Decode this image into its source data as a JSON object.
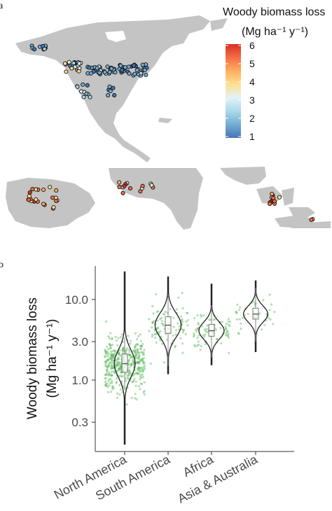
{
  "panels": {
    "a": "a",
    "b": "b"
  },
  "legend": {
    "title": "Woody biomass loss",
    "unit": "(Mg ha⁻¹ y⁻¹)",
    "ticks": [
      "6",
      "5",
      "4",
      "3",
      "2",
      "1"
    ],
    "range": [
      1,
      6
    ],
    "colors": [
      "#d73027",
      "#f46d43",
      "#fdae61",
      "#fee090",
      "#e0f3f8",
      "#abd9e9",
      "#74add1",
      "#4575b4"
    ]
  },
  "chart_data": {
    "type": "violin",
    "ylabel": "Woody biomass loss",
    "yunit": "(Mg ha⁻¹ y⁻¹)",
    "yscale": "log",
    "ylim": [
      0.13,
      25
    ],
    "yticks": [
      {
        "value": 0.3,
        "label": "0.3"
      },
      {
        "value": 1.0,
        "label": "1.0"
      },
      {
        "value": 3.0,
        "label": "3.0"
      },
      {
        "value": 10.0,
        "label": "10.0"
      }
    ],
    "categories": [
      "North America",
      "South America",
      "Africa",
      "Asia & Australia"
    ],
    "box": [
      {
        "q1": 1.25,
        "median": 1.6,
        "q3": 2.1,
        "whisker_low": 0.75,
        "whisker_high": 3.4,
        "min": 0.16,
        "max": 22
      },
      {
        "q1": 3.8,
        "median": 4.8,
        "q3": 6.1,
        "whisker_low": 1.5,
        "whisker_high": 11,
        "min": 1.2,
        "max": 19
      },
      {
        "q1": 3.5,
        "median": 4.1,
        "q3": 4.9,
        "whisker_low": 1.9,
        "whisker_high": 8.5,
        "min": 1.55,
        "max": 15.5
      },
      {
        "q1": 5.7,
        "median": 6.6,
        "q3": 7.8,
        "whisker_low": 3.0,
        "whisker_high": 14,
        "min": 2.25,
        "max": 17
      }
    ],
    "point_color": "#5cb85c"
  }
}
